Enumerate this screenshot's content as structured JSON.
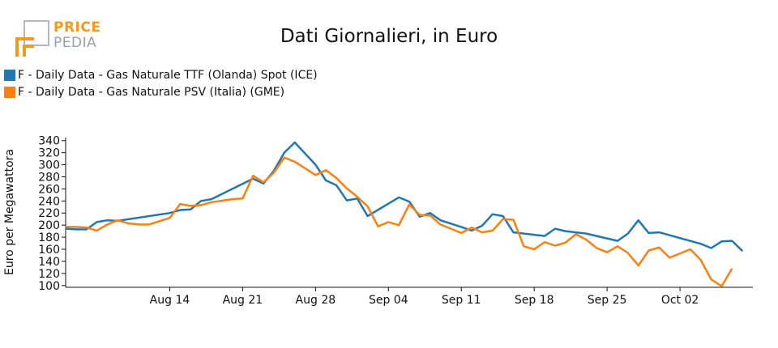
{
  "logo": {
    "line1": "PRICE",
    "line2": "PEDIA"
  },
  "chart_data": {
    "type": "line",
    "title": "Dati Giornalieri, in Euro",
    "ylabel": "Euro per Megawattora",
    "xlabel": "",
    "ylim": [
      97,
      345
    ],
    "yticks": [
      100,
      120,
      140,
      160,
      180,
      200,
      220,
      240,
      260,
      280,
      300,
      320,
      340
    ],
    "xlim": [
      "2023-08-04",
      "2023-10-09"
    ],
    "xticks": [
      {
        "date": "2023-08-14",
        "label": "Aug 14"
      },
      {
        "date": "2023-08-21",
        "label": "Aug 21"
      },
      {
        "date": "2023-08-28",
        "label": "Aug 28"
      },
      {
        "date": "2023-09-04",
        "label": "Sep 04"
      },
      {
        "date": "2023-09-11",
        "label": "Sep 11"
      },
      {
        "date": "2023-09-18",
        "label": "Sep 18"
      },
      {
        "date": "2023-09-25",
        "label": "Sep 25"
      },
      {
        "date": "2023-10-02",
        "label": "Oct 02"
      }
    ],
    "grid": false,
    "legend_position": "top-left",
    "series": [
      {
        "name": "F - Daily Data - Gas Naturale TTF (Olanda) Spot (ICE)",
        "color": "#1f77b4",
        "points": [
          [
            "2023-08-04",
            194
          ],
          [
            "2023-08-05",
            193
          ],
          [
            "2023-08-06",
            193
          ],
          [
            "2023-08-07",
            205
          ],
          [
            "2023-08-08",
            208
          ],
          [
            "2023-08-09",
            207
          ],
          [
            "2023-08-14",
            220
          ],
          [
            "2023-08-15",
            225
          ],
          [
            "2023-08-16",
            226
          ],
          [
            "2023-08-17",
            240
          ],
          [
            "2023-08-18",
            243
          ],
          [
            "2023-08-22",
            277
          ],
          [
            "2023-08-23",
            269
          ],
          [
            "2023-08-24",
            290
          ],
          [
            "2023-08-25",
            320
          ],
          [
            "2023-08-26",
            337
          ],
          [
            "2023-08-28",
            300
          ],
          [
            "2023-08-29",
            274
          ],
          [
            "2023-08-30",
            266
          ],
          [
            "2023-08-31",
            241
          ],
          [
            "2023-09-01",
            244
          ],
          [
            "2023-09-02",
            215
          ],
          [
            "2023-09-05",
            246
          ],
          [
            "2023-09-06",
            239
          ],
          [
            "2023-09-07",
            214
          ],
          [
            "2023-09-08",
            220
          ],
          [
            "2023-09-09",
            208
          ],
          [
            "2023-09-11",
            197
          ],
          [
            "2023-09-12",
            191
          ],
          [
            "2023-09-13",
            199
          ],
          [
            "2023-09-14",
            218
          ],
          [
            "2023-09-15",
            215
          ],
          [
            "2023-09-16",
            188
          ],
          [
            "2023-09-19",
            182
          ],
          [
            "2023-09-20",
            194
          ],
          [
            "2023-09-21",
            190
          ],
          [
            "2023-09-23",
            186
          ],
          [
            "2023-09-25",
            178
          ],
          [
            "2023-09-26",
            174
          ],
          [
            "2023-09-27",
            186
          ],
          [
            "2023-09-28",
            208
          ],
          [
            "2023-09-29",
            187
          ],
          [
            "2023-09-30",
            188
          ],
          [
            "2023-10-04",
            169
          ],
          [
            "2023-10-05",
            162
          ],
          [
            "2023-10-06",
            173
          ],
          [
            "2023-10-07",
            174
          ],
          [
            "2023-10-08",
            157
          ]
        ]
      },
      {
        "name": "F - Daily Data - Gas Naturale PSV (Italia) (GME)",
        "color": "#ff7f0e",
        "points": [
          [
            "2023-08-04",
            197
          ],
          [
            "2023-08-05",
            197
          ],
          [
            "2023-08-06",
            196
          ],
          [
            "2023-08-07",
            191
          ],
          [
            "2023-08-08",
            201
          ],
          [
            "2023-08-09",
            208
          ],
          [
            "2023-08-10",
            203
          ],
          [
            "2023-08-11",
            201
          ],
          [
            "2023-08-12",
            201
          ],
          [
            "2023-08-14",
            212
          ],
          [
            "2023-08-15",
            235
          ],
          [
            "2023-08-16",
            232
          ],
          [
            "2023-08-17",
            233
          ],
          [
            "2023-08-18",
            238
          ],
          [
            "2023-08-20",
            243
          ],
          [
            "2023-08-21",
            244
          ],
          [
            "2023-08-22",
            282
          ],
          [
            "2023-08-23",
            271
          ],
          [
            "2023-08-24",
            287
          ],
          [
            "2023-08-25",
            312
          ],
          [
            "2023-08-26",
            305
          ],
          [
            "2023-08-28",
            283
          ],
          [
            "2023-08-29",
            291
          ],
          [
            "2023-08-30",
            278
          ],
          [
            "2023-08-31",
            261
          ],
          [
            "2023-09-01",
            247
          ],
          [
            "2023-09-02",
            231
          ],
          [
            "2023-09-03",
            198
          ],
          [
            "2023-09-04",
            205
          ],
          [
            "2023-09-05",
            200
          ],
          [
            "2023-09-06",
            234
          ],
          [
            "2023-09-07",
            217
          ],
          [
            "2023-09-08",
            216
          ],
          [
            "2023-09-09",
            201
          ],
          [
            "2023-09-10",
            194
          ],
          [
            "2023-09-11",
            187
          ],
          [
            "2023-09-12",
            196
          ],
          [
            "2023-09-13",
            188
          ],
          [
            "2023-09-14",
            191
          ],
          [
            "2023-09-15",
            210
          ],
          [
            "2023-09-16",
            209
          ],
          [
            "2023-09-17",
            165
          ],
          [
            "2023-09-18",
            160
          ],
          [
            "2023-09-19",
            172
          ],
          [
            "2023-09-20",
            166
          ],
          [
            "2023-09-21",
            171
          ],
          [
            "2023-09-22",
            185
          ],
          [
            "2023-09-23",
            176
          ],
          [
            "2023-09-24",
            162
          ],
          [
            "2023-09-25",
            155
          ],
          [
            "2023-09-26",
            165
          ],
          [
            "2023-09-27",
            154
          ],
          [
            "2023-09-28",
            133
          ],
          [
            "2023-09-29",
            158
          ],
          [
            "2023-09-30",
            163
          ],
          [
            "2023-10-01",
            146
          ],
          [
            "2023-10-03",
            160
          ],
          [
            "2023-10-04",
            142
          ],
          [
            "2023-10-05",
            110
          ],
          [
            "2023-10-06",
            99
          ],
          [
            "2023-10-07",
            128
          ]
        ]
      }
    ]
  }
}
